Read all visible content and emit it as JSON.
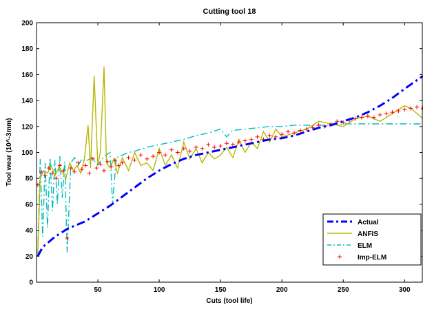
{
  "chart_data": {
    "type": "line",
    "title": "Cutting tool 18",
    "xlabel": "Cuts (tool life)",
    "ylabel": "Tool wear (10^-3mm)",
    "xlim": [
      0,
      315
    ],
    "ylim": [
      0,
      200
    ],
    "xticks": [
      50,
      100,
      150,
      200,
      250,
      300
    ],
    "yticks": [
      0,
      20,
      40,
      60,
      80,
      100,
      120,
      140,
      160,
      180,
      200
    ],
    "grid": false,
    "legend_position": "bottom-right",
    "series": [
      {
        "name": "Actual",
        "color": "#0000ff",
        "style": "dash-dot",
        "x": [
          1,
          5,
          10,
          15,
          20,
          25,
          30,
          40,
          50,
          60,
          70,
          80,
          90,
          100,
          110,
          120,
          130,
          140,
          150,
          160,
          170,
          180,
          190,
          200,
          210,
          220,
          230,
          240,
          250,
          260,
          270,
          280,
          290,
          300,
          315
        ],
        "y": [
          20,
          27,
          31,
          35,
          38,
          41,
          43,
          47,
          53,
          59,
          66,
          73,
          80,
          86,
          91,
          95,
          98,
          100,
          102,
          104,
          106,
          108,
          110,
          111,
          113,
          116,
          119,
          121,
          124,
          127,
          131,
          136,
          142,
          149,
          159
        ]
      },
      {
        "name": "ANFIS",
        "color": "#b5b800",
        "style": "solid",
        "x": [
          1,
          3,
          6,
          9,
          12,
          15,
          18,
          21,
          24,
          27,
          30,
          33,
          36,
          39,
          42,
          44,
          47,
          50,
          52,
          55,
          57,
          60,
          63,
          66,
          70,
          75,
          80,
          85,
          90,
          95,
          100,
          105,
          110,
          115,
          120,
          125,
          130,
          135,
          140,
          145,
          150,
          155,
          160,
          165,
          170,
          175,
          180,
          185,
          190,
          195,
          200,
          210,
          220,
          230,
          240,
          250,
          260,
          270,
          280,
          290,
          300,
          305,
          310,
          315
        ],
        "y": [
          20,
          80,
          86,
          84,
          90,
          82,
          88,
          85,
          80,
          92,
          86,
          90,
          84,
          95,
          121,
          88,
          159,
          90,
          100,
          166,
          92,
          88,
          95,
          84,
          96,
          86,
          100,
          90,
          92,
          86,
          103,
          90,
          98,
          88,
          108,
          95,
          103,
          92,
          100,
          95,
          98,
          104,
          96,
          110,
          100,
          108,
          103,
          116,
          108,
          118,
          112,
          115,
          118,
          124,
          122,
          120,
          126,
          128,
          124,
          130,
          136,
          134,
          130,
          126
        ]
      },
      {
        "name": "ELM",
        "color": "#00bcbc",
        "style": "dash-dot",
        "x": [
          1,
          3,
          5,
          7,
          9,
          11,
          13,
          15,
          17,
          19,
          21,
          23,
          25,
          28,
          31,
          34,
          37,
          40,
          45,
          50,
          55,
          60,
          62,
          65,
          70,
          75,
          80,
          90,
          100,
          110,
          120,
          130,
          140,
          150,
          155,
          160,
          170,
          180,
          190,
          200,
          210,
          220,
          230,
          240,
          250,
          260,
          270,
          280,
          290,
          300,
          315
        ],
        "y": [
          20,
          95,
          35,
          92,
          42,
          96,
          55,
          94,
          60,
          97,
          65,
          93,
          23,
          92,
          96,
          90,
          95,
          93,
          96,
          90,
          97,
          100,
          60,
          96,
          98,
          100,
          101,
          104,
          106,
          108,
          110,
          113,
          115,
          118,
          112,
          117,
          118,
          119,
          120,
          120,
          121,
          121,
          121,
          121,
          122,
          122,
          122,
          122,
          122,
          122,
          122
        ]
      },
      {
        "name": "Imp-ELM",
        "color": "#ff0000",
        "style": "plus",
        "x": [
          1,
          4,
          7,
          10,
          13,
          16,
          19,
          22,
          25,
          28,
          31,
          34,
          37,
          40,
          43,
          46,
          49,
          52,
          55,
          58,
          61,
          64,
          67,
          70,
          75,
          80,
          85,
          90,
          95,
          100,
          105,
          110,
          115,
          120,
          125,
          130,
          135,
          140,
          145,
          150,
          155,
          160,
          165,
          170,
          175,
          180,
          185,
          190,
          195,
          200,
          205,
          210,
          215,
          220,
          225,
          230,
          235,
          240,
          245,
          250,
          255,
          260,
          265,
          270,
          275,
          280,
          285,
          290,
          295,
          300,
          305,
          310,
          315
        ],
        "y": [
          75,
          85,
          82,
          88,
          84,
          80,
          90,
          86,
          34,
          88,
          85,
          92,
          87,
          90,
          84,
          95,
          88,
          91,
          86,
          93,
          89,
          94,
          90,
          92,
          96,
          94,
          98,
          95,
          97,
          100,
          98,
          102,
          100,
          103,
          101,
          104,
          103,
          106,
          104,
          105,
          107,
          106,
          108,
          109,
          110,
          112,
          110,
          113,
          112,
          114,
          116,
          115,
          117,
          118,
          119,
          121,
          120,
          122,
          124,
          123,
          125,
          126,
          127,
          128,
          127,
          129,
          130,
          131,
          132,
          133,
          134,
          135,
          134
        ]
      }
    ]
  }
}
